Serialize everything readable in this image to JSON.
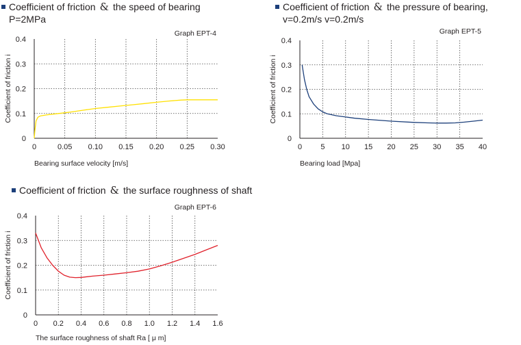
{
  "headings": {
    "h1": {
      "text": "Coefficient of friction",
      "amp": "&",
      "rest": "the speed of bearing",
      "line2": "P=2MPa"
    },
    "h2": {
      "text": "Coefficient of friction",
      "amp": "&",
      "rest": "the pressure of bearing,",
      "line2": "v=0.2m/s v=0.2m/s"
    },
    "h3": {
      "text": "Coefficient of friction",
      "amp": "&",
      "rest": "the surface roughness of shaft",
      "line2": ""
    }
  },
  "colors": {
    "bullet": "#1c3f7a",
    "series1": "#ffe000",
    "series2": "#1c3f7a",
    "series3": "#e0202a",
    "grid": "#444444"
  },
  "chart_data": [
    {
      "type": "line",
      "graph_label": "Graph  EPT-4",
      "xlabel": "Bearing surface velocity  [m/s]",
      "ylabel": "Coefficient  of  friction    i",
      "xlim": [
        0,
        0.3
      ],
      "ylim": [
        0,
        0.4
      ],
      "xticks": [
        "0",
        "0.05",
        "0.10",
        "0.15",
        "0.20",
        "0.25",
        "0.30"
      ],
      "yticks": [
        "0",
        "0.1",
        "0.2",
        "0.3",
        "0.4"
      ],
      "grid": true,
      "series": [
        {
          "x": [
            0,
            0.001,
            0.003,
            0.006,
            0.01,
            0.02,
            0.04,
            0.06,
            0.08,
            0.1,
            0.12,
            0.14,
            0.16,
            0.18,
            0.2,
            0.22,
            0.24,
            0.25,
            0.26,
            0.28,
            0.3
          ],
          "y": [
            0.0,
            0.03,
            0.07,
            0.085,
            0.09,
            0.094,
            0.1,
            0.106,
            0.113,
            0.12,
            0.125,
            0.13,
            0.135,
            0.14,
            0.145,
            0.15,
            0.154,
            0.155,
            0.155,
            0.155,
            0.155
          ]
        }
      ]
    },
    {
      "type": "line",
      "graph_label": "Graph   EPT-5",
      "xlabel": "Bearing load  [Mpa]",
      "ylabel": "Coefficient  of  friction    i",
      "xlim": [
        0,
        40
      ],
      "ylim": [
        0,
        0.4
      ],
      "xticks": [
        "0",
        "5",
        "10",
        "15",
        "20",
        "25",
        "30",
        "35",
        "40"
      ],
      "yticks": [
        "0",
        "0.1",
        "0.2",
        "0.3",
        "0.4"
      ],
      "grid": true,
      "series": [
        {
          "x": [
            0.5,
            1,
            1.5,
            2,
            3,
            4,
            5,
            6,
            8,
            10,
            12,
            15,
            20,
            25,
            28,
            30,
            32,
            34,
            36,
            38,
            40
          ],
          "y": [
            0.3,
            0.24,
            0.2,
            0.17,
            0.14,
            0.12,
            0.108,
            0.1,
            0.092,
            0.087,
            0.082,
            0.077,
            0.07,
            0.065,
            0.063,
            0.062,
            0.062,
            0.063,
            0.066,
            0.07,
            0.074
          ]
        }
      ]
    },
    {
      "type": "line",
      "graph_label": "Graph  EPT-6",
      "xlabel": "The surface roughness of shaft  Ra [ μ m]",
      "ylabel": "Coefficient  of  friction    i",
      "xlim": [
        0,
        1.6
      ],
      "ylim": [
        0,
        0.4
      ],
      "xticks": [
        "0",
        "0.2",
        "0.4",
        "0.6",
        "0.8",
        "1.0",
        "1.2",
        "1.4",
        "1.6"
      ],
      "yticks": [
        "0",
        "0.1",
        "0.2",
        "0.3",
        "0.4"
      ],
      "grid": true,
      "series": [
        {
          "x": [
            0,
            0.05,
            0.1,
            0.15,
            0.2,
            0.25,
            0.3,
            0.35,
            0.4,
            0.5,
            0.6,
            0.7,
            0.8,
            0.9,
            1.0,
            1.1,
            1.2,
            1.3,
            1.4,
            1.5,
            1.6
          ],
          "y": [
            0.33,
            0.27,
            0.23,
            0.2,
            0.176,
            0.16,
            0.152,
            0.15,
            0.151,
            0.156,
            0.16,
            0.165,
            0.17,
            0.176,
            0.185,
            0.198,
            0.212,
            0.228,
            0.244,
            0.262,
            0.28
          ]
        }
      ]
    }
  ]
}
